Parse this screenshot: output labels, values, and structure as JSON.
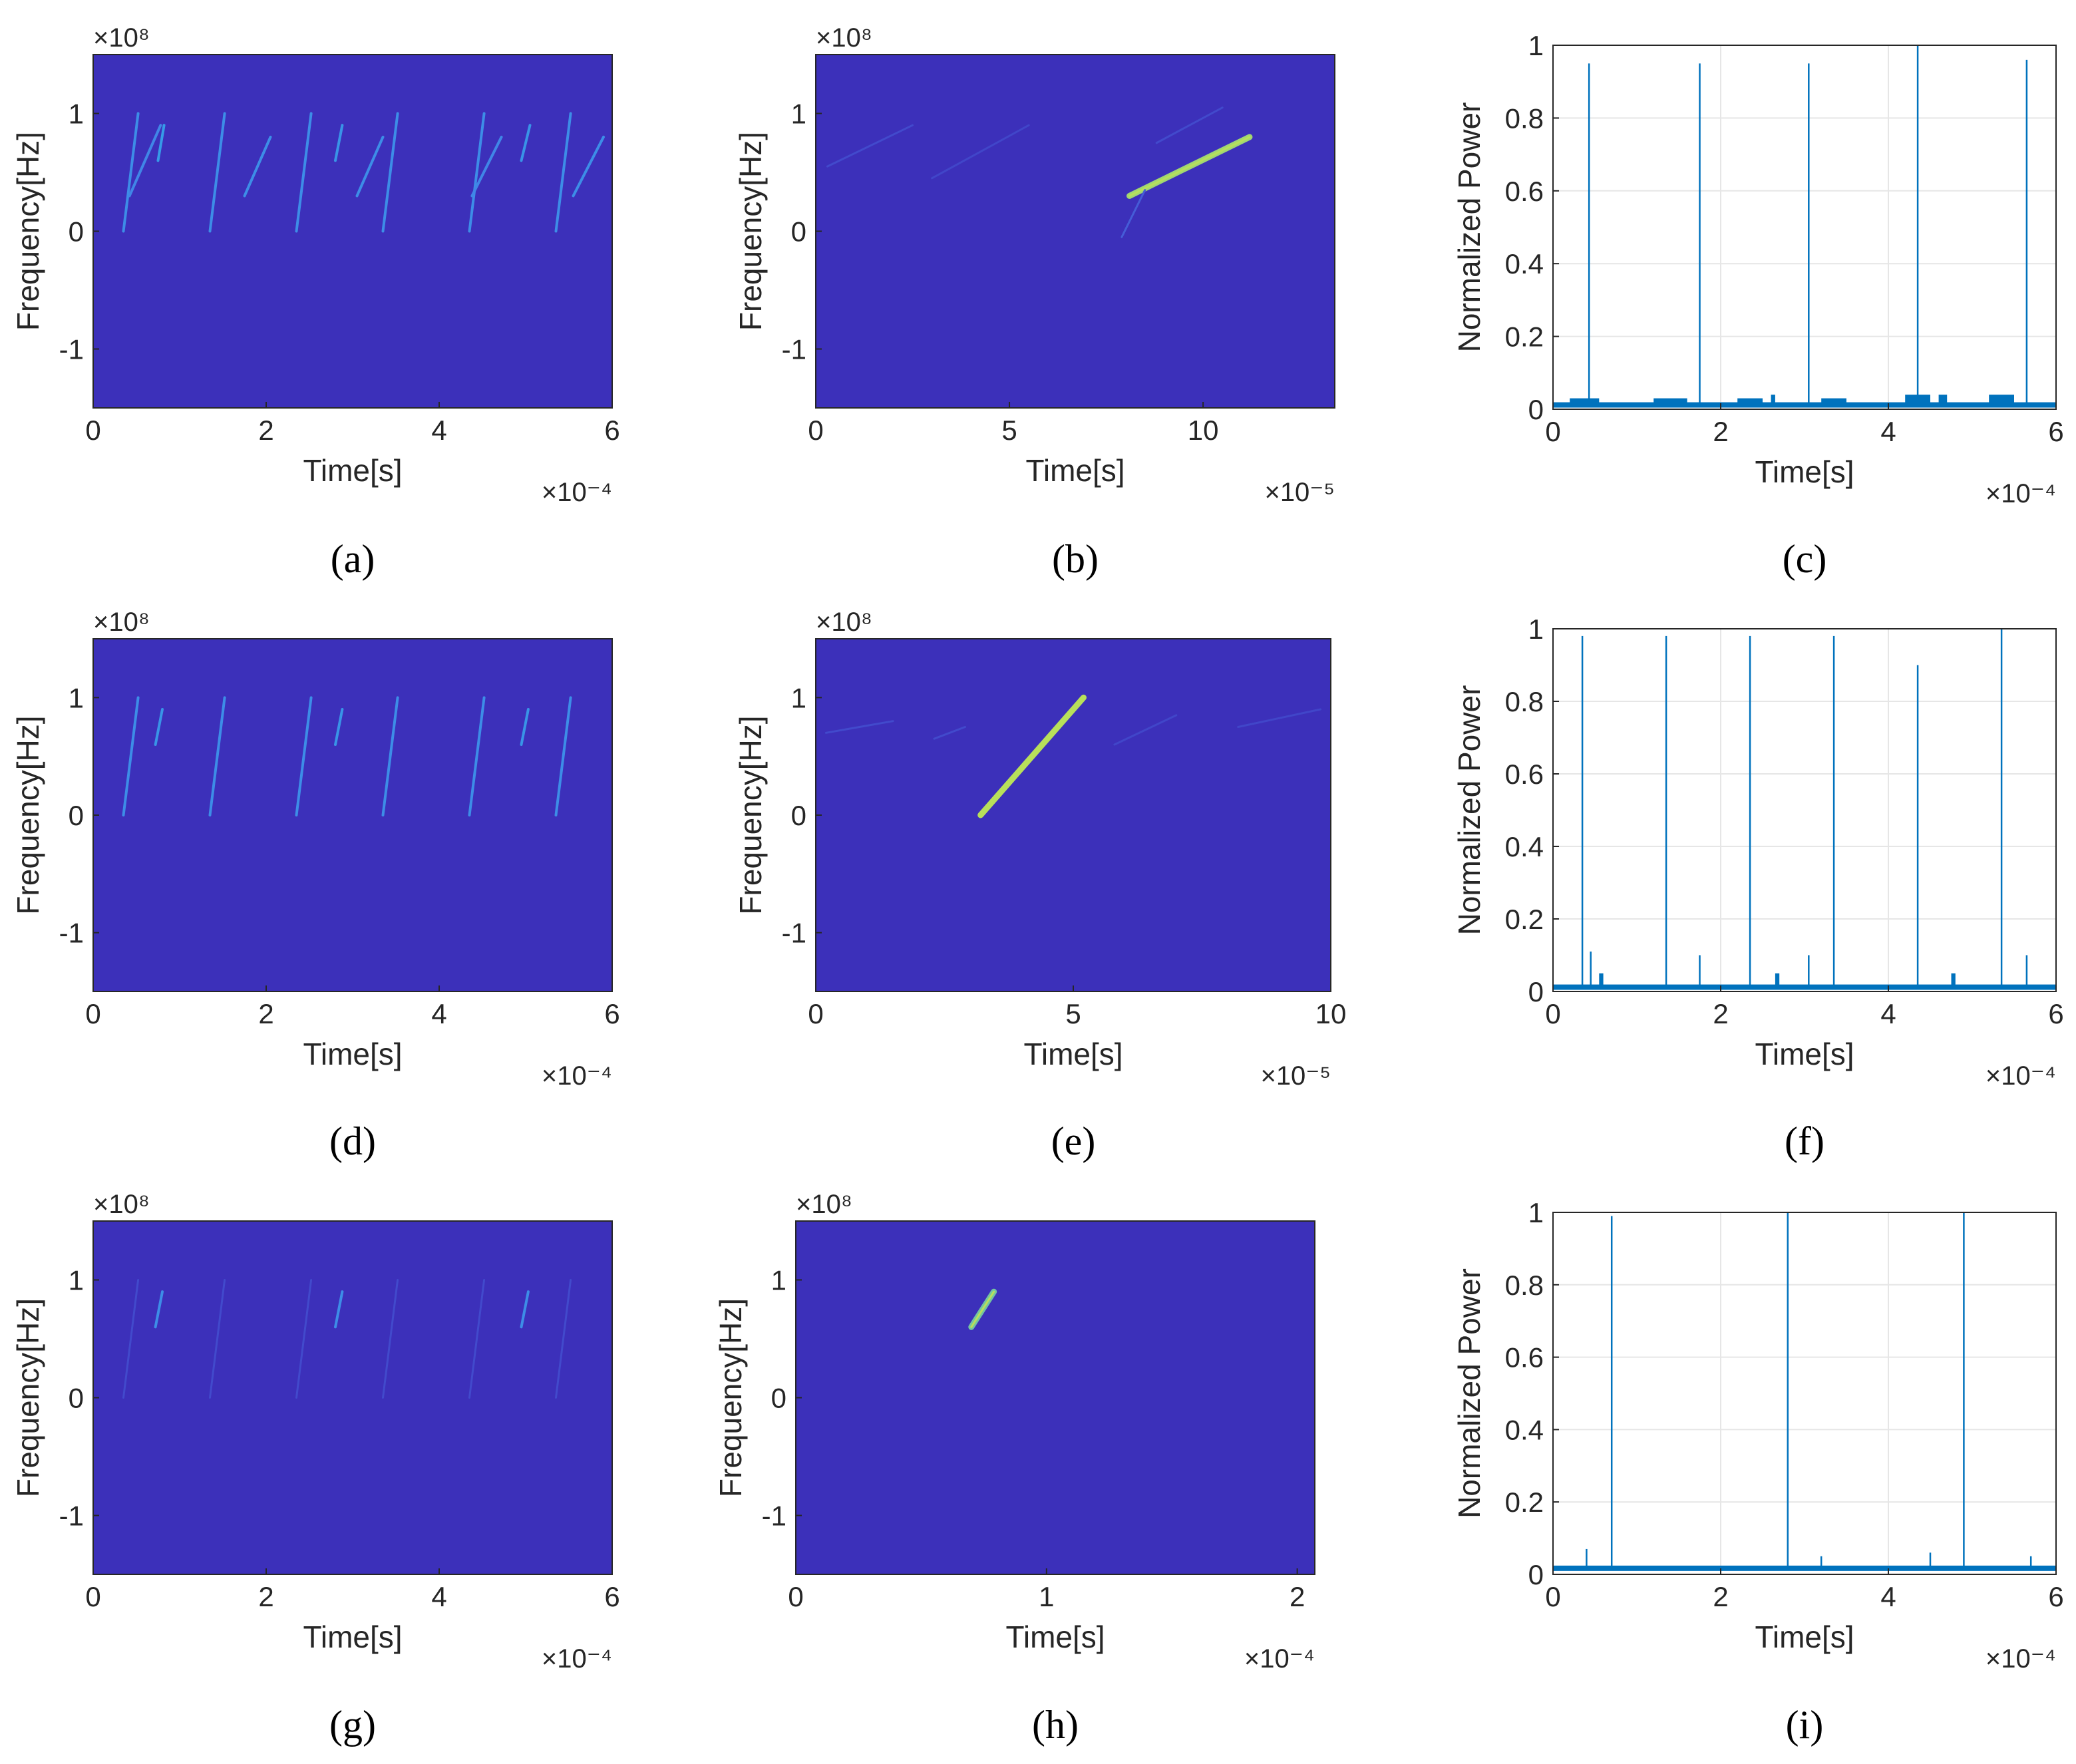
{
  "colors": {
    "background": "#3c30ba",
    "chirp_faint": "#4a72e6",
    "chirp_mid": "#2fa8e8",
    "chirp_peak": "#b8e05a",
    "trace": "#0072bd",
    "grid": "#e6e6e6",
    "axis": "#262626"
  },
  "chart_data": [
    {
      "panel": "a",
      "type": "heatmap",
      "caption": "(a)",
      "xlabel": "Time[s]",
      "ylabel": "Frequency[Hz]",
      "x_exponent": "×10⁻⁴",
      "y_exponent": "×10⁸",
      "xlim": [
        0,
        6
      ],
      "ylim": [
        -1.5,
        1.5
      ],
      "xticks": [
        "0",
        "2",
        "4",
        "6"
      ],
      "yticks": [
        "-1",
        "0",
        "1"
      ],
      "chirps": [
        {
          "x": [
            0.35,
            0.52
          ],
          "y": [
            0.0,
            1.0
          ],
          "level": 0.5
        },
        {
          "x": [
            0.42,
            0.78
          ],
          "y": [
            0.3,
            0.9
          ],
          "level": 0.45
        },
        {
          "x": [
            0.75,
            0.82
          ],
          "y": [
            0.6,
            0.9
          ],
          "level": 0.6
        },
        {
          "x": [
            1.35,
            1.52
          ],
          "y": [
            0.0,
            1.0
          ],
          "level": 0.5
        },
        {
          "x": [
            1.75,
            2.05
          ],
          "y": [
            0.3,
            0.8
          ],
          "level": 0.5
        },
        {
          "x": [
            2.35,
            2.52
          ],
          "y": [
            0.0,
            1.0
          ],
          "level": 0.5
        },
        {
          "x": [
            2.8,
            2.88
          ],
          "y": [
            0.6,
            0.9
          ],
          "level": 0.55
        },
        {
          "x": [
            3.05,
            3.35
          ],
          "y": [
            0.3,
            0.8
          ],
          "level": 0.5
        },
        {
          "x": [
            3.35,
            3.52
          ],
          "y": [
            0.0,
            1.0
          ],
          "level": 0.5
        },
        {
          "x": [
            4.35,
            4.52
          ],
          "y": [
            0.0,
            1.0
          ],
          "level": 0.5
        },
        {
          "x": [
            4.38,
            4.72
          ],
          "y": [
            0.3,
            0.8
          ],
          "level": 0.45
        },
        {
          "x": [
            4.95,
            5.05
          ],
          "y": [
            0.6,
            0.9
          ],
          "level": 0.55
        },
        {
          "x": [
            5.35,
            5.52
          ],
          "y": [
            0.0,
            1.0
          ],
          "level": 0.5
        },
        {
          "x": [
            5.55,
            5.9
          ],
          "y": [
            0.3,
            0.8
          ],
          "level": 0.5
        }
      ]
    },
    {
      "panel": "b",
      "type": "heatmap",
      "caption": "(b)",
      "xlabel": "Time[s]",
      "ylabel": "Frequency[Hz]",
      "x_exponent": "×10⁻⁵",
      "y_exponent": "×10⁸",
      "xlim": [
        0,
        13.4
      ],
      "ylim": [
        -1.5,
        1.5
      ],
      "xticks": [
        "0",
        "5",
        "10"
      ],
      "yticks": [
        "-1",
        "0",
        "1"
      ],
      "chirps": [
        {
          "x": [
            8.1,
            11.2
          ],
          "y": [
            0.3,
            0.8
          ],
          "level": 0.95
        },
        {
          "x": [
            7.9,
            8.5
          ],
          "y": [
            -0.05,
            0.35
          ],
          "level": 0.2
        },
        {
          "x": [
            0.3,
            2.5
          ],
          "y": [
            0.55,
            0.9
          ],
          "level": 0.12
        },
        {
          "x": [
            3.0,
            5.5
          ],
          "y": [
            0.45,
            0.9
          ],
          "level": 0.1
        },
        {
          "x": [
            8.8,
            10.5
          ],
          "y": [
            0.75,
            1.05
          ],
          "level": 0.12
        }
      ]
    },
    {
      "panel": "c",
      "type": "line",
      "caption": "(c)",
      "xlabel": "Time[s]",
      "ylabel": "Normalized Power",
      "x_exponent": "×10⁻⁴",
      "xlim": [
        0,
        6
      ],
      "ylim": [
        0,
        1
      ],
      "xticks": [
        "0",
        "2",
        "4",
        "6"
      ],
      "yticks": [
        "0",
        "0.2",
        "0.4",
        "0.6",
        "0.8",
        "1"
      ],
      "grid": true,
      "baseline": 0.01,
      "peaks": [
        {
          "x": 0.43,
          "y": 0.95
        },
        {
          "x": 1.75,
          "y": 0.95
        },
        {
          "x": 3.05,
          "y": 0.95
        },
        {
          "x": 4.35,
          "y": 1.0
        },
        {
          "x": 5.65,
          "y": 0.96
        }
      ],
      "plateaus": [
        {
          "x": [
            0.2,
            0.55
          ],
          "y": 0.03
        },
        {
          "x": [
            1.2,
            1.6
          ],
          "y": 0.03
        },
        {
          "x": [
            2.2,
            2.5
          ],
          "y": 0.03
        },
        {
          "x": [
            2.6,
            2.65
          ],
          "y": 0.04
        },
        {
          "x": [
            3.2,
            3.5
          ],
          "y": 0.03
        },
        {
          "x": [
            4.2,
            4.5
          ],
          "y": 0.04
        },
        {
          "x": [
            4.6,
            4.7
          ],
          "y": 0.04
        },
        {
          "x": [
            5.2,
            5.5
          ],
          "y": 0.04
        }
      ]
    },
    {
      "panel": "d",
      "type": "heatmap",
      "caption": "(d)",
      "xlabel": "Time[s]",
      "ylabel": "Frequency[Hz]",
      "x_exponent": "×10⁻⁴",
      "y_exponent": "×10⁸",
      "xlim": [
        0,
        6
      ],
      "ylim": [
        -1.5,
        1.5
      ],
      "xticks": [
        "0",
        "2",
        "4",
        "6"
      ],
      "yticks": [
        "-1",
        "0",
        "1"
      ],
      "chirps": [
        {
          "x": [
            0.35,
            0.52
          ],
          "y": [
            0.0,
            1.0
          ],
          "level": 0.5
        },
        {
          "x": [
            0.72,
            0.8
          ],
          "y": [
            0.6,
            0.9
          ],
          "level": 0.55
        },
        {
          "x": [
            1.35,
            1.52
          ],
          "y": [
            0.0,
            1.0
          ],
          "level": 0.5
        },
        {
          "x": [
            2.35,
            2.52
          ],
          "y": [
            0.0,
            1.0
          ],
          "level": 0.5
        },
        {
          "x": [
            2.8,
            2.88
          ],
          "y": [
            0.6,
            0.9
          ],
          "level": 0.55
        },
        {
          "x": [
            3.35,
            3.52
          ],
          "y": [
            0.0,
            1.0
          ],
          "level": 0.5
        },
        {
          "x": [
            4.35,
            4.52
          ],
          "y": [
            0.0,
            1.0
          ],
          "level": 0.5
        },
        {
          "x": [
            4.95,
            5.03
          ],
          "y": [
            0.6,
            0.9
          ],
          "level": 0.55
        },
        {
          "x": [
            5.35,
            5.52
          ],
          "y": [
            0.0,
            1.0
          ],
          "level": 0.5
        }
      ]
    },
    {
      "panel": "e",
      "type": "heatmap",
      "caption": "(e)",
      "xlabel": "Time[s]",
      "ylabel": "Frequency[Hz]",
      "x_exponent": "×10⁻⁵",
      "y_exponent": "×10⁸",
      "xlim": [
        0,
        10
      ],
      "ylim": [
        -1.5,
        1.5
      ],
      "xticks": [
        "0",
        "5",
        "10"
      ],
      "yticks": [
        "-1",
        "0",
        "1"
      ],
      "chirps": [
        {
          "x": [
            3.2,
            5.2
          ],
          "y": [
            0.0,
            1.0
          ],
          "level": 1.0
        },
        {
          "x": [
            0.2,
            1.5
          ],
          "y": [
            0.7,
            0.8
          ],
          "level": 0.12
        },
        {
          "x": [
            2.3,
            2.9
          ],
          "y": [
            0.65,
            0.75
          ],
          "level": 0.12
        },
        {
          "x": [
            5.8,
            7.0
          ],
          "y": [
            0.6,
            0.85
          ],
          "level": 0.1
        },
        {
          "x": [
            8.2,
            9.8
          ],
          "y": [
            0.75,
            0.9
          ],
          "level": 0.1
        }
      ]
    },
    {
      "panel": "f",
      "type": "line",
      "caption": "(f)",
      "xlabel": "Time[s]",
      "ylabel": "Normalized Power",
      "x_exponent": "×10⁻⁴",
      "xlim": [
        0,
        6
      ],
      "ylim": [
        0,
        1
      ],
      "xticks": [
        "0",
        "2",
        "4",
        "6"
      ],
      "yticks": [
        "0",
        "0.2",
        "0.4",
        "0.6",
        "0.8",
        "1"
      ],
      "grid": true,
      "baseline": 0.01,
      "peaks": [
        {
          "x": 0.35,
          "y": 0.98
        },
        {
          "x": 0.45,
          "y": 0.11
        },
        {
          "x": 1.35,
          "y": 0.98
        },
        {
          "x": 1.75,
          "y": 0.1
        },
        {
          "x": 2.35,
          "y": 0.98
        },
        {
          "x": 3.05,
          "y": 0.1
        },
        {
          "x": 3.35,
          "y": 0.98
        },
        {
          "x": 4.35,
          "y": 0.9
        },
        {
          "x": 5.35,
          "y": 1.0
        },
        {
          "x": 5.65,
          "y": 0.1
        }
      ],
      "plateaus": [
        {
          "x": [
            0.55,
            0.6
          ],
          "y": 0.05
        },
        {
          "x": [
            2.65,
            2.7
          ],
          "y": 0.05
        },
        {
          "x": [
            4.75,
            4.8
          ],
          "y": 0.05
        }
      ]
    },
    {
      "panel": "g",
      "type": "heatmap",
      "caption": "(g)",
      "xlabel": "Time[s]",
      "ylabel": "Frequency[Hz]",
      "x_exponent": "×10⁻⁴",
      "y_exponent": "×10⁸",
      "xlim": [
        0,
        6
      ],
      "ylim": [
        -1.5,
        1.5
      ],
      "xticks": [
        "0",
        "2",
        "4",
        "6"
      ],
      "yticks": [
        "-1",
        "0",
        "1"
      ],
      "chirps": [
        {
          "x": [
            0.72,
            0.8
          ],
          "y": [
            0.6,
            0.9
          ],
          "level": 0.5
        },
        {
          "x": [
            2.8,
            2.88
          ],
          "y": [
            0.6,
            0.9
          ],
          "level": 0.5
        },
        {
          "x": [
            4.95,
            5.03
          ],
          "y": [
            0.6,
            0.9
          ],
          "level": 0.5
        },
        {
          "x": [
            0.35,
            0.52
          ],
          "y": [
            0.0,
            1.0
          ],
          "level": 0.12
        },
        {
          "x": [
            1.35,
            1.52
          ],
          "y": [
            0.0,
            1.0
          ],
          "level": 0.12
        },
        {
          "x": [
            2.35,
            2.52
          ],
          "y": [
            0.0,
            1.0
          ],
          "level": 0.12
        },
        {
          "x": [
            3.35,
            3.52
          ],
          "y": [
            0.0,
            1.0
          ],
          "level": 0.12
        },
        {
          "x": [
            4.35,
            4.52
          ],
          "y": [
            0.0,
            1.0
          ],
          "level": 0.12
        },
        {
          "x": [
            5.35,
            5.52
          ],
          "y": [
            0.0,
            1.0
          ],
          "level": 0.12
        }
      ]
    },
    {
      "panel": "h",
      "type": "heatmap",
      "caption": "(h)",
      "xlabel": "Time[s]",
      "ylabel": "Frequency[Hz]",
      "x_exponent": "×10⁻⁴",
      "y_exponent": "×10⁸",
      "xlim": [
        0,
        2.07
      ],
      "ylim": [
        -1.5,
        1.5
      ],
      "xticks": [
        "0",
        "1",
        "2"
      ],
      "yticks": [
        "-1",
        "0",
        "1"
      ],
      "chirps": [
        {
          "x": [
            0.7,
            0.79
          ],
          "y": [
            0.6,
            0.9
          ],
          "level": 0.85
        }
      ]
    },
    {
      "panel": "i",
      "type": "line",
      "caption": "(i)",
      "xlabel": "Time[s]",
      "ylabel": "Normalized Power",
      "x_exponent": "×10⁻⁴",
      "xlim": [
        0,
        6
      ],
      "ylim": [
        0,
        1
      ],
      "xticks": [
        "0",
        "2",
        "4",
        "6"
      ],
      "yticks": [
        "0",
        "0.2",
        "0.4",
        "0.6",
        "0.8",
        "1"
      ],
      "grid": true,
      "baseline": 0.015,
      "peaks": [
        {
          "x": 0.7,
          "y": 0.99
        },
        {
          "x": 0.4,
          "y": 0.07
        },
        {
          "x": 2.8,
          "y": 1.0
        },
        {
          "x": 3.2,
          "y": 0.05
        },
        {
          "x": 4.5,
          "y": 0.06
        },
        {
          "x": 4.9,
          "y": 1.0
        },
        {
          "x": 5.7,
          "y": 0.05
        }
      ],
      "plateaus": []
    }
  ]
}
